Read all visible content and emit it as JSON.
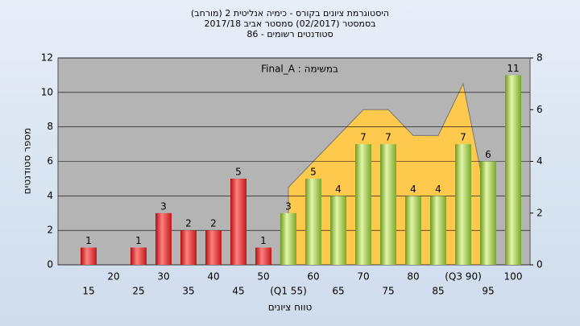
{
  "chart_data": {
    "type": "bar",
    "title": "היסטוגרמת ציונים בקורס - כימיה אנליטית 2 (מורחב)",
    "subtitle": "בסמסטר (02/2017) סמסטר אביב 2017/18",
    "subtitle2": "סטודנטים רשומים - 86",
    "annotation": "במשימה : Final_A",
    "x_label": "טווח ציונים",
    "y_label": "מספר סטודנטים",
    "categories": [
      "15",
      "20",
      "25",
      "30",
      "35",
      "40",
      "45",
      "50",
      "(Q1 55)",
      "60",
      "65",
      "70",
      "75",
      "80",
      "85",
      "(Q3 90)",
      "95",
      "100"
    ],
    "values": [
      1,
      0,
      1,
      3,
      2,
      2,
      5,
      1,
      3,
      5,
      4,
      7,
      7,
      4,
      4,
      7,
      6,
      11
    ],
    "colors": [
      "red",
      "red",
      "red",
      "red",
      "red",
      "red",
      "red",
      "red",
      "green",
      "green",
      "green",
      "green",
      "green",
      "green",
      "green",
      "green",
      "green",
      "green"
    ],
    "area": {
      "axis": "y2",
      "color": "#ffc94d",
      "values": [
        null,
        null,
        null,
        null,
        null,
        null,
        null,
        null,
        3,
        4,
        5,
        6,
        6,
        5,
        5,
        7,
        2.2,
        null
      ]
    },
    "ylim": [
      0,
      12
    ],
    "yticks": [
      0,
      2,
      4,
      6,
      8,
      10,
      12
    ],
    "y2lim": [
      0,
      8
    ],
    "y2ticks": [
      0,
      2,
      4,
      6,
      8
    ],
    "grid": true
  }
}
